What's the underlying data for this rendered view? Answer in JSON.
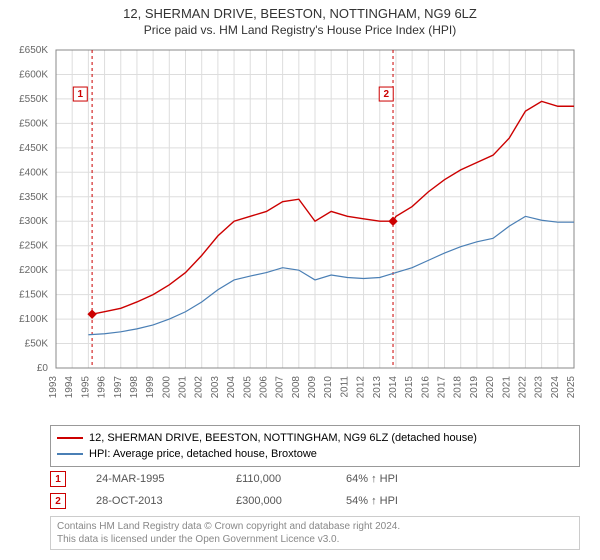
{
  "title": {
    "line1": "12, SHERMAN DRIVE, BEESTON, NOTTINGHAM, NG9 6LZ",
    "line2": "Price paid vs. HM Land Registry's House Price Index (HPI)",
    "fontsize_line1": 13,
    "fontsize_line2": 12,
    "color": "#333333"
  },
  "chart": {
    "type": "line",
    "background_color": "#ffffff",
    "plot_bg": "#ffffff",
    "grid_color": "#dddddd",
    "axis_color": "#888888",
    "tick_fontsize": 10,
    "tick_color": "#666666",
    "x": {
      "min": 1993,
      "max": 2025,
      "tick_step": 1,
      "ticks": [
        1993,
        1994,
        1995,
        1996,
        1997,
        1998,
        1999,
        2000,
        2001,
        2002,
        2003,
        2004,
        2005,
        2006,
        2007,
        2008,
        2009,
        2010,
        2011,
        2012,
        2013,
        2014,
        2015,
        2016,
        2017,
        2018,
        2019,
        2020,
        2021,
        2022,
        2023,
        2024,
        2025
      ],
      "rotation": -90
    },
    "y": {
      "min": 0,
      "max": 650000,
      "tick_step": 50000,
      "tick_labels": [
        "£0",
        "£50K",
        "£100K",
        "£150K",
        "£200K",
        "£250K",
        "£300K",
        "£350K",
        "£400K",
        "£450K",
        "£500K",
        "£550K",
        "£600K",
        "£650K"
      ]
    },
    "series": [
      {
        "name": "property",
        "label": "12, SHERMAN DRIVE, BEESTON, NOTTINGHAM, NG9 6LZ (detached house)",
        "color": "#cc0000",
        "line_width": 1.4,
        "data": [
          [
            1995.23,
            110000
          ],
          [
            1996,
            115000
          ],
          [
            1997,
            122000
          ],
          [
            1998,
            135000
          ],
          [
            1999,
            150000
          ],
          [
            2000,
            170000
          ],
          [
            2001,
            195000
          ],
          [
            2002,
            230000
          ],
          [
            2003,
            270000
          ],
          [
            2004,
            300000
          ],
          [
            2005,
            310000
          ],
          [
            2006,
            320000
          ],
          [
            2007,
            340000
          ],
          [
            2008,
            345000
          ],
          [
            2009,
            300000
          ],
          [
            2010,
            320000
          ],
          [
            2011,
            310000
          ],
          [
            2012,
            305000
          ],
          [
            2013,
            300000
          ],
          [
            2013.82,
            300000
          ],
          [
            2014,
            310000
          ],
          [
            2015,
            330000
          ],
          [
            2016,
            360000
          ],
          [
            2017,
            385000
          ],
          [
            2018,
            405000
          ],
          [
            2019,
            420000
          ],
          [
            2020,
            435000
          ],
          [
            2021,
            470000
          ],
          [
            2022,
            525000
          ],
          [
            2023,
            545000
          ],
          [
            2024,
            535000
          ],
          [
            2025,
            535000
          ]
        ]
      },
      {
        "name": "hpi",
        "label": "HPI: Average price, detached house, Broxtowe",
        "color": "#4a7fb5",
        "line_width": 1.2,
        "data": [
          [
            1995,
            68000
          ],
          [
            1996,
            70000
          ],
          [
            1997,
            74000
          ],
          [
            1998,
            80000
          ],
          [
            1999,
            88000
          ],
          [
            2000,
            100000
          ],
          [
            2001,
            115000
          ],
          [
            2002,
            135000
          ],
          [
            2003,
            160000
          ],
          [
            2004,
            180000
          ],
          [
            2005,
            188000
          ],
          [
            2006,
            195000
          ],
          [
            2007,
            205000
          ],
          [
            2008,
            200000
          ],
          [
            2009,
            180000
          ],
          [
            2010,
            190000
          ],
          [
            2011,
            185000
          ],
          [
            2012,
            183000
          ],
          [
            2013,
            185000
          ],
          [
            2014,
            195000
          ],
          [
            2015,
            205000
          ],
          [
            2016,
            220000
          ],
          [
            2017,
            235000
          ],
          [
            2018,
            248000
          ],
          [
            2019,
            258000
          ],
          [
            2020,
            265000
          ],
          [
            2021,
            290000
          ],
          [
            2022,
            310000
          ],
          [
            2023,
            302000
          ],
          [
            2024,
            298000
          ],
          [
            2025,
            298000
          ]
        ]
      }
    ],
    "markers": [
      {
        "n": 1,
        "x": 1995.23,
        "y": 110000,
        "badge_x": 1994.5,
        "badge_y": 560000
      },
      {
        "n": 2,
        "x": 2013.82,
        "y": 300000,
        "badge_x": 2013.4,
        "badge_y": 560000
      }
    ],
    "marker_style": {
      "badge_border": "#cc0000",
      "badge_text": "#cc0000",
      "badge_bg": "#ffffff",
      "badge_size": 14,
      "dashed_line_color": "#cc0000",
      "dashed_pattern": "3,3",
      "point_fill": "#cc0000",
      "point_radius": 4,
      "diamond": true
    }
  },
  "legend": {
    "border_color": "#999999",
    "fontsize": 11,
    "items": [
      {
        "color": "#cc0000",
        "label": "12, SHERMAN DRIVE, BEESTON, NOTTINGHAM, NG9 6LZ (detached house)"
      },
      {
        "color": "#4a7fb5",
        "label": "HPI: Average price, detached house, Broxtowe"
      }
    ]
  },
  "sales": [
    {
      "n": "1",
      "date": "24-MAR-1995",
      "price": "£110,000",
      "pct": "64% ↑ HPI"
    },
    {
      "n": "2",
      "date": "28-OCT-2013",
      "price": "£300,000",
      "pct": "54% ↑ HPI"
    }
  ],
  "sales_style": {
    "badge_border": "#cc0000",
    "badge_text": "#cc0000",
    "text_color": "#555555",
    "fontsize": 11
  },
  "footer": {
    "line1": "Contains HM Land Registry data © Crown copyright and database right 2024.",
    "line2": "This data is licensed under the Open Government Licence v3.0.",
    "color": "#888888",
    "border_color": "#cccccc",
    "fontsize": 10
  }
}
